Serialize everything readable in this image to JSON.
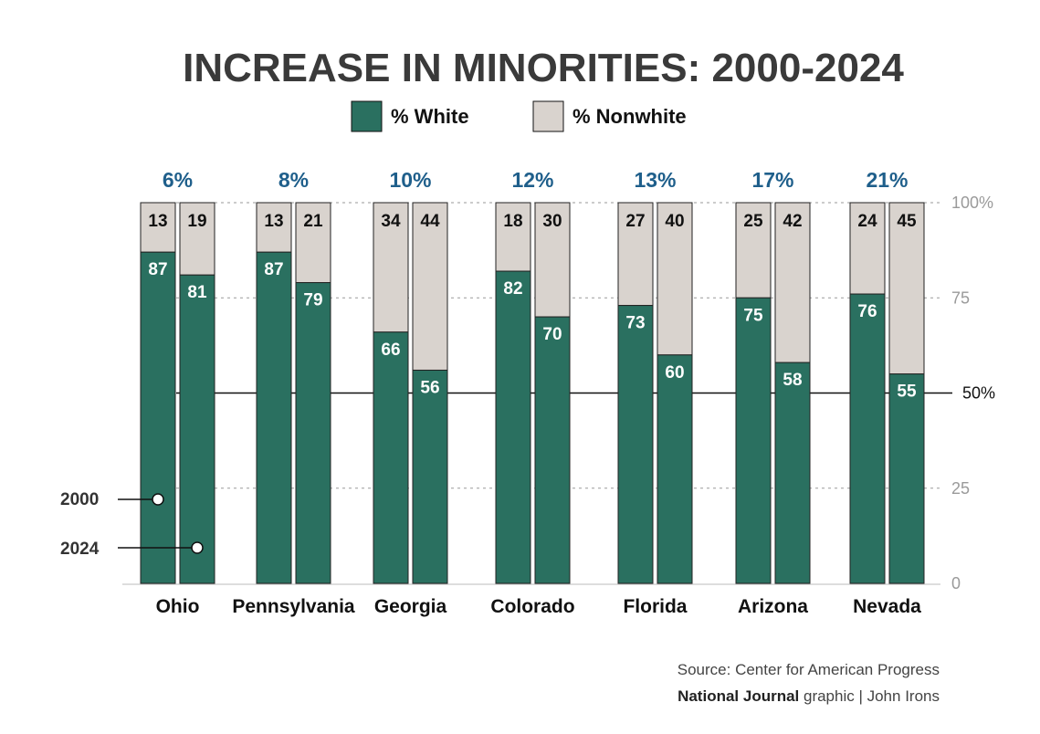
{
  "chart_data": {
    "type": "bar",
    "stacked": true,
    "title": "INCREASE IN MINORITIES: 2000-2024",
    "legend": [
      "% White",
      "% Nonwhite"
    ],
    "legend_placement": "top-center",
    "colors": {
      "white": "#2a7060",
      "nonwhite": "#d9d3ce",
      "increase": "#1f5f8b"
    },
    "years": [
      "2000",
      "2024"
    ],
    "categories": [
      "Ohio",
      "Pennsylvania",
      "Georgia",
      "Colorado",
      "Florida",
      "Arizona",
      "Nevada"
    ],
    "increase_labels": [
      "6%",
      "8%",
      "10%",
      "12%",
      "13%",
      "17%",
      "21%"
    ],
    "series": [
      {
        "name": "% White",
        "values_2000": [
          87,
          87,
          66,
          82,
          73,
          75,
          76
        ],
        "values_2024": [
          81,
          79,
          56,
          70,
          60,
          58,
          55
        ]
      },
      {
        "name": "% Nonwhite",
        "values_2000": [
          13,
          13,
          34,
          18,
          27,
          25,
          24
        ],
        "values_2024": [
          19,
          21,
          44,
          30,
          40,
          42,
          45
        ]
      }
    ],
    "ylim": [
      0,
      100
    ],
    "yticks": [
      "0",
      "25",
      "50%",
      "75",
      "100%"
    ],
    "ytick_values": [
      0,
      25,
      50,
      75,
      100
    ],
    "grid": true
  },
  "source": "Source: Center for American Progress",
  "credit_bold": "National Journal",
  "credit_rest": " graphic  | John Irons"
}
